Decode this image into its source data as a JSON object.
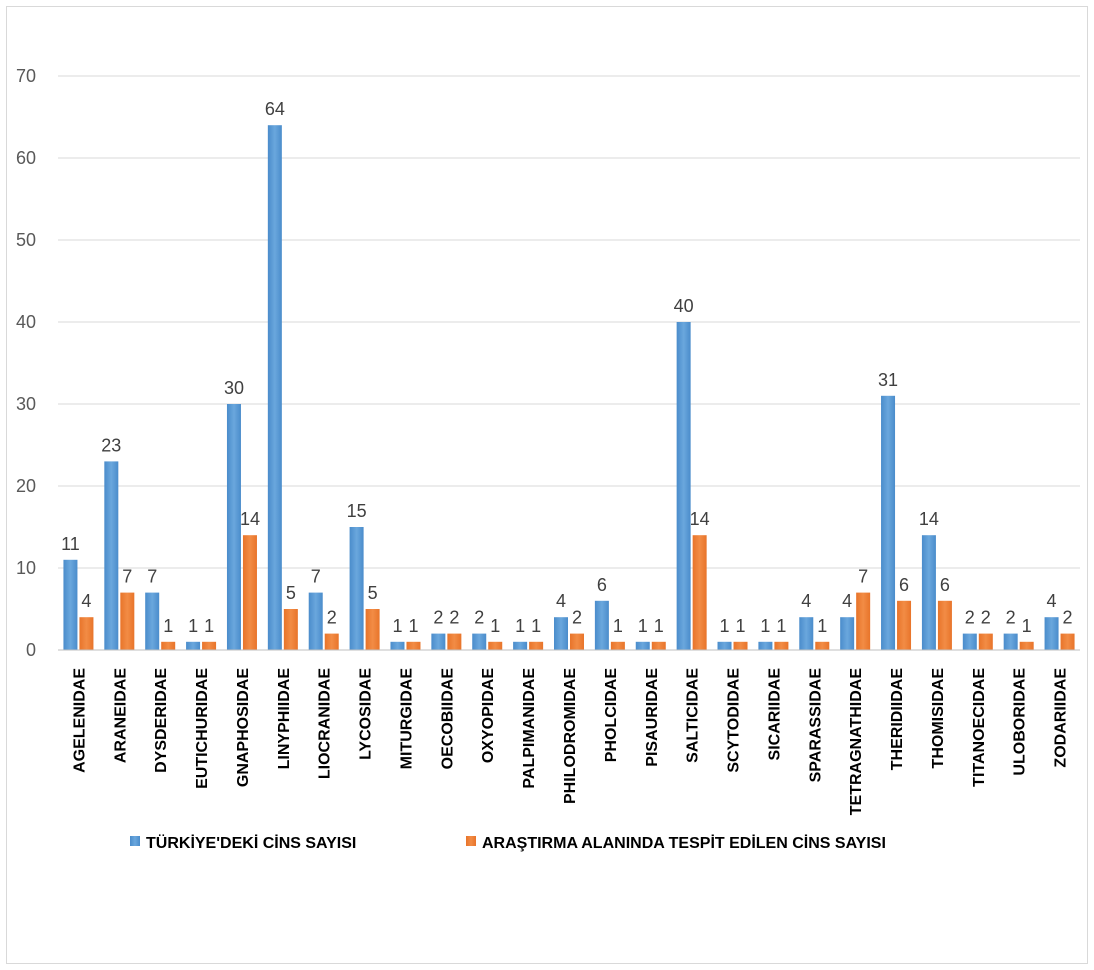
{
  "chart_data": {
    "type": "bar",
    "title": "",
    "xlabel": "",
    "ylabel": "",
    "ylim": [
      0,
      70
    ],
    "yticks": [
      0,
      10,
      20,
      30,
      40,
      50,
      60,
      70
    ],
    "grid": true,
    "legend_position": "bottom",
    "categories": [
      "AGELENIDAE",
      "ARANEIDAE",
      "DYSDERIDAE",
      "EUTICHURIDAE",
      "GNAPHOSIDAE",
      "LINYPHIIDAE",
      "LIOCRANIDAE",
      "LYCOSIDAE",
      "MITURGIDAE",
      "OECOBIIDAE",
      "OXYOPIDAE",
      "PALPIMANIDAE",
      "PHILODROMIDAE",
      "PHOLCIDAE",
      "PISAURIDAE",
      "SALTICIDAE",
      "SCYTODIDAE",
      "SICARIIDAE",
      "SPARASSIDAE",
      "TETRAGNATHIDAE",
      "THERIDIIDAE",
      "THOMISIDAE",
      "TITANOECIDAE",
      "ULOBORIDAE",
      "ZODARIIDAE"
    ],
    "series": [
      {
        "name": "TÜRKİYE'DEKİ CİNS SAYISI",
        "color": "#5b9bd5",
        "values": [
          11,
          23,
          7,
          1,
          30,
          64,
          7,
          15,
          1,
          2,
          2,
          1,
          4,
          6,
          1,
          40,
          1,
          1,
          4,
          4,
          31,
          14,
          2,
          2,
          4
        ]
      },
      {
        "name": "ARAŞTIRMA ALANINDA TESPİT EDİLEN CİNS SAYISI",
        "color": "#ed7d31",
        "values": [
          4,
          7,
          1,
          1,
          14,
          5,
          2,
          5,
          1,
          2,
          1,
          1,
          2,
          1,
          1,
          14,
          1,
          1,
          1,
          7,
          6,
          6,
          2,
          1,
          2
        ]
      }
    ]
  }
}
